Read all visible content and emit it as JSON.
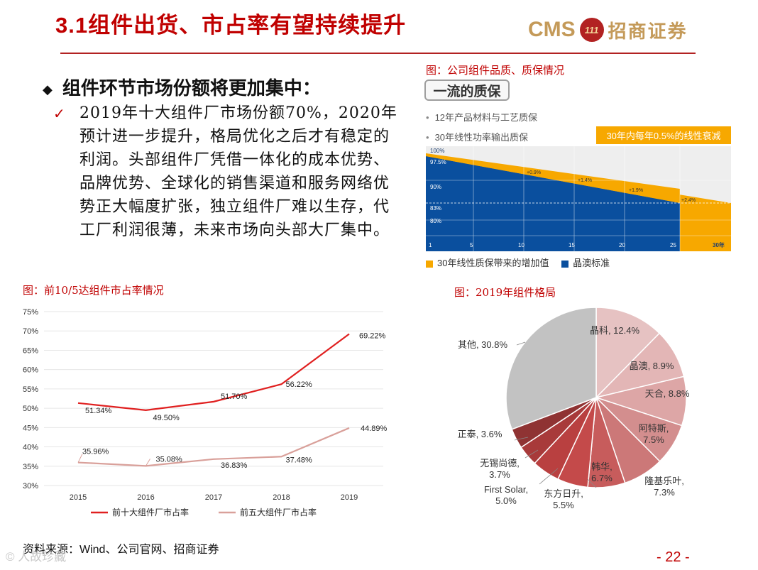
{
  "header": {
    "title": "3.1组件出货、市占率有望持续提升",
    "logo_cms": "CMS",
    "logo_badge": "111",
    "logo_cn": "招商证券"
  },
  "bullet": {
    "heading": "组件环节市场份额将更加集中：",
    "check": "✓",
    "text": "2019年十大组件厂市场份额70%，2020年预计进一步提升，格局优化之后才有稳定的利润。头部组件厂凭借一体化的成本优势、品牌优势、全球化的销售渠道和服务网络优势正大幅度扩张，独立组件厂难以生存，代工厂利润很薄，未来市场向头部大厂集中。"
  },
  "quality": {
    "caption": "图：公司组件品质、质保情况",
    "title": "一流的质保",
    "row1": "12年产品材料与工艺质保",
    "row2": "30年线性功率输出质保",
    "tag": "30年内每年0.5%的线性衰减",
    "legend_added": "30年线性质保带来的增加值",
    "legend_standard": "晶澳标准",
    "colors": {
      "blue": "#0a4f9e",
      "orange": "#f7a800"
    },
    "y_labels": [
      "100%",
      "97.5%",
      "90%",
      "83%",
      "80%"
    ],
    "x_labels": [
      "1",
      "5",
      "10",
      "15",
      "20",
      "25",
      "30年"
    ],
    "gains": [
      "+0.9%",
      "+1.4%",
      "+1.9%",
      "+2.4%"
    ]
  },
  "line_chart": {
    "caption": "图：前10/5达组件市占率情况"
  },
  "pie_chart": {
    "caption": "图：2019年组件格局"
  },
  "chart_data": [
    {
      "type": "line",
      "title": "前10/5达组件市占率情况",
      "x": [
        "2015",
        "2016",
        "2017",
        "2018",
        "2019"
      ],
      "ylim": [
        30,
        75
      ],
      "yticks": [
        "30%",
        "35%",
        "40%",
        "45%",
        "50%",
        "55%",
        "60%",
        "65%",
        "70%",
        "75%"
      ],
      "series": [
        {
          "name": "前十大组件厂市占率",
          "values": [
            51.34,
            49.5,
            51.7,
            56.22,
            69.22
          ],
          "labels": [
            "51.34%",
            "49.50%",
            "51.70%",
            "56.22%",
            "69.22%"
          ],
          "color": "#e02020"
        },
        {
          "name": "前五大组件厂市占率",
          "values": [
            35.96,
            35.08,
            36.83,
            37.48,
            44.89
          ],
          "labels": [
            "35.96%",
            "35.08%",
            "36.83%",
            "37.48%",
            "44.89%"
          ],
          "color": "#d9a09a"
        }
      ]
    },
    {
      "type": "pie",
      "title": "2019年组件格局",
      "slices": [
        {
          "name": "晶科",
          "value": 12.4,
          "label": "晶科, 12.4%",
          "color": "#e6c2c2"
        },
        {
          "name": "晶澳",
          "value": 8.9,
          "label": "晶澳, 8.9%",
          "color": "#e3b6b6"
        },
        {
          "name": "天合",
          "value": 8.8,
          "label": "天合, 8.8%",
          "color": "#dda6a6"
        },
        {
          "name": "阿特斯",
          "value": 7.5,
          "label": "阿特斯,\n7.5%",
          "color": "#d38e8e"
        },
        {
          "name": "隆基乐叶",
          "value": 7.3,
          "label": "隆基乐叶,\n7.3%",
          "color": "#cc7878"
        },
        {
          "name": "韩华",
          "value": 6.7,
          "label": "韩华,\n6.7%",
          "color": "#c75c5c"
        },
        {
          "name": "东方日升",
          "value": 5.5,
          "label": "东方日升,\n5.5%",
          "color": "#c44a4a"
        },
        {
          "name": "First Solar",
          "value": 5.0,
          "label": "First Solar,\n5.0%",
          "color": "#b94040"
        },
        {
          "name": "无锡尚德",
          "value": 3.7,
          "label": "无锡尚德,\n3.7%",
          "color": "#a83a3a"
        },
        {
          "name": "正泰",
          "value": 3.6,
          "label": "正泰, 3.6%",
          "color": "#8f3333"
        },
        {
          "name": "其他",
          "value": 30.8,
          "label": "其他, 30.8%",
          "color": "#c2c2c2"
        }
      ]
    }
  ],
  "footer": {
    "source": "资料来源：Wind、公司官网、招商证券",
    "watermark": "© 人故珍藏",
    "page": "- 22 -"
  }
}
